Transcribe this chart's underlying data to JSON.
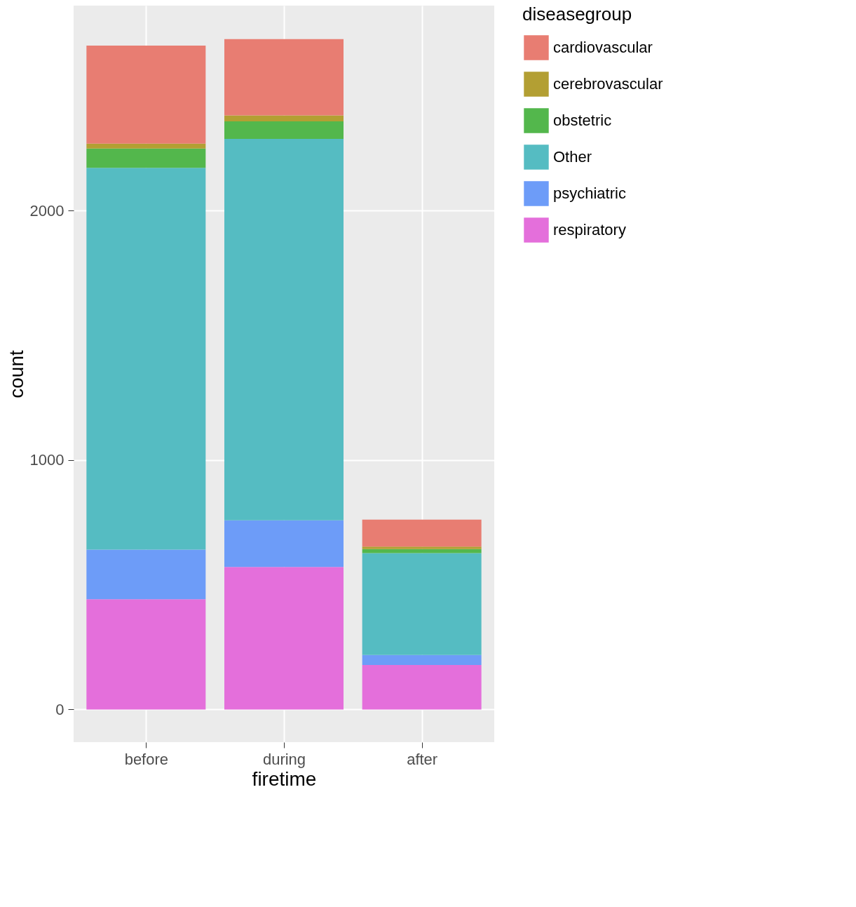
{
  "chart_data": {
    "type": "bar",
    "stacked": true,
    "xlabel": "firetime",
    "ylabel": "count",
    "legend_title": "diseasegroup",
    "legend": "right",
    "grid": true,
    "categories": [
      "before",
      "during",
      "after"
    ],
    "ylim": [
      -131,
      2821
    ],
    "yticks": [
      0,
      1000,
      2000
    ],
    "series": [
      {
        "name": "respiratory",
        "color": "#e46fdb",
        "values": [
          442,
          571,
          178
        ]
      },
      {
        "name": "psychiatric",
        "color": "#6d9cf8",
        "values": [
          199,
          187,
          40
        ]
      },
      {
        "name": "Other",
        "color": "#55bcc2",
        "values": [
          1530,
          1529,
          409
        ]
      },
      {
        "name": "obstetric",
        "color": "#53b74c",
        "values": [
          77,
          70,
          16
        ]
      },
      {
        "name": "cerebrovascular",
        "color": "#b39f33",
        "values": [
          20,
          24,
          10
        ]
      },
      {
        "name": "cardiovascular",
        "color": "#e87d72",
        "values": [
          393,
          306,
          108
        ]
      }
    ]
  }
}
